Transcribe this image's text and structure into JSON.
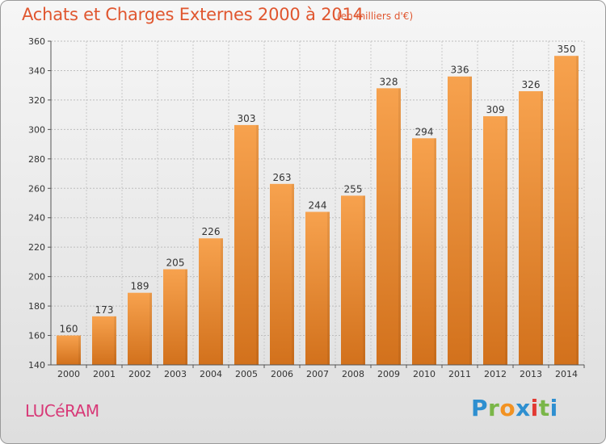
{
  "header": {
    "title": "Achats et Charges Externes 2000 à 2014",
    "subtitle": "(en milliers d'€)"
  },
  "footer": {
    "commune": "LUCéRAM",
    "brand": "Proxiti"
  },
  "colors": {
    "title": "#e0562f",
    "commune": "#d83a78",
    "bar_top": "#f7a24e",
    "bar_bottom": "#d2711c"
  },
  "chart_data": {
    "type": "bar",
    "categories": [
      "2000",
      "2001",
      "2002",
      "2003",
      "2004",
      "2005",
      "2006",
      "2007",
      "2008",
      "2009",
      "2010",
      "2011",
      "2012",
      "2013",
      "2014"
    ],
    "values": [
      160,
      173,
      189,
      205,
      226,
      303,
      263,
      244,
      255,
      328,
      294,
      336,
      309,
      326,
      350
    ],
    "ylim": [
      140,
      360
    ],
    "yticks": [
      140,
      160,
      180,
      200,
      220,
      240,
      260,
      280,
      300,
      320,
      340,
      360
    ],
    "grid": true,
    "data_labels": true
  }
}
